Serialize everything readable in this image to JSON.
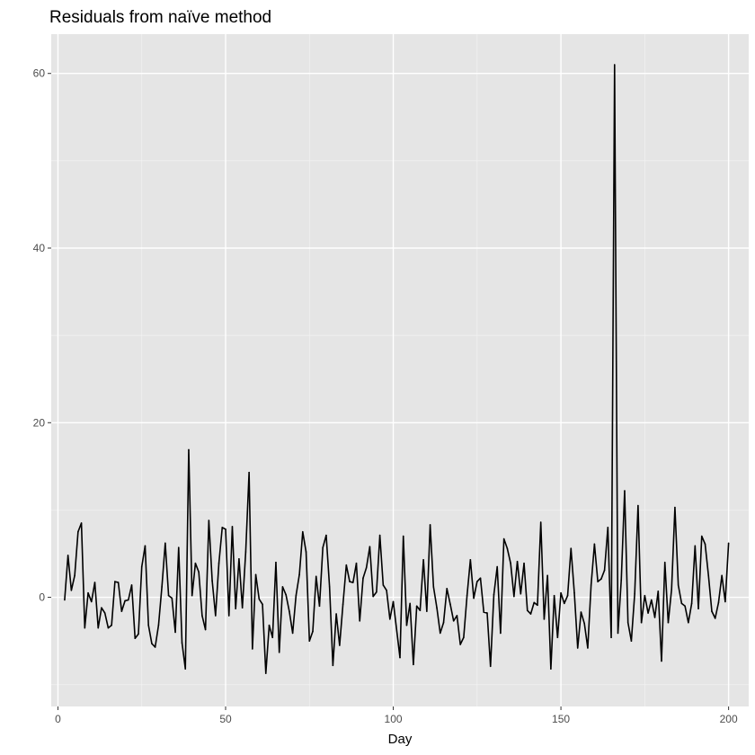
{
  "chart_data": {
    "type": "line",
    "title": "Residuals from naïve method",
    "xlabel": "Day",
    "ylabel": "",
    "xlim": [
      -2,
      206
    ],
    "ylim": [
      -12.5,
      64.5
    ],
    "x_ticks": [
      0,
      50,
      100,
      150,
      200
    ],
    "x_tick_labels": [
      "0",
      "50",
      "100",
      "150",
      "200"
    ],
    "y_ticks": [
      0,
      20,
      40,
      60
    ],
    "y_tick_labels": [
      "0",
      "20",
      "40",
      "60"
    ],
    "grid": true,
    "legend": "none",
    "colors": {
      "line": "#000000",
      "panel": "#e5e5e5"
    },
    "series": [
      {
        "x": [
          2,
          3,
          4,
          5,
          6,
          7,
          8,
          9,
          10,
          11,
          12,
          13,
          14,
          15,
          16,
          17,
          18,
          19,
          20,
          21,
          22,
          23,
          24,
          25,
          26,
          27,
          28,
          29,
          30,
          31,
          32,
          33,
          34,
          35,
          36,
          37,
          38,
          39,
          40,
          41,
          42,
          43,
          44,
          45,
          46,
          47,
          48,
          49,
          50,
          51,
          52,
          53,
          54,
          55,
          56,
          57,
          58,
          59,
          60,
          61,
          62,
          63,
          64,
          65,
          66,
          67,
          68,
          69,
          70,
          71,
          72,
          73,
          74,
          75,
          76,
          77,
          78,
          79,
          80,
          81,
          82,
          83,
          84,
          85,
          86,
          87,
          88,
          89,
          90,
          91,
          92,
          93,
          94,
          95,
          96,
          97,
          98,
          99,
          100,
          101,
          102,
          103,
          104,
          105,
          106,
          107,
          108,
          109,
          110,
          111,
          112,
          113,
          114,
          115,
          116,
          117,
          118,
          119,
          120,
          121,
          122,
          123,
          124,
          125,
          126,
          127,
          128,
          129,
          130,
          131,
          132,
          133,
          134,
          135,
          136,
          137,
          138,
          139,
          140,
          141,
          142,
          143,
          144,
          145,
          146,
          147,
          148,
          149,
          150,
          151,
          152,
          153,
          154,
          155,
          156,
          157,
          158,
          159,
          160,
          161,
          162,
          163,
          164,
          165,
          166,
          167,
          168,
          169,
          170,
          171,
          172,
          173,
          174,
          175,
          176,
          177,
          178,
          179,
          180,
          181,
          182,
          183,
          184,
          185,
          186,
          187,
          188,
          189,
          190,
          191,
          192,
          193,
          194,
          195,
          196,
          197,
          198,
          199,
          200
        ],
        "values": [
          -0.3,
          4.8,
          0.8,
          2.5,
          7.5,
          8.5,
          -3.5,
          0.5,
          -0.5,
          1.7,
          -3.5,
          -1.2,
          -1.8,
          -3.5,
          -3.2,
          1.8,
          1.7,
          -1.6,
          -0.4,
          -0.3,
          1.4,
          -4.7,
          -4.2,
          3.5,
          5.9,
          -3.2,
          -5.3,
          -5.7,
          -3.2,
          1.2,
          6.2,
          0.2,
          -0.1,
          -4.0,
          5.7,
          -5.2,
          -8.2,
          16.9,
          0.2,
          3.9,
          2.9,
          -2.1,
          -3.7,
          8.8,
          1.9,
          -2.1,
          3.9,
          8.0,
          7.8,
          -2.1,
          8.1,
          -1.3,
          4.4,
          -1.2,
          5.2,
          14.3,
          -5.9,
          2.6,
          -0.2,
          -0.8,
          -8.7,
          -3.2,
          -4.6,
          4.0,
          -6.3,
          1.2,
          0.3,
          -1.6,
          -4.1,
          0.2,
          2.6,
          7.5,
          5.2,
          -5.0,
          -3.9,
          2.4,
          -1.0,
          5.7,
          7.1,
          1.2,
          -7.8,
          -1.9,
          -5.5,
          -0.8,
          3.7,
          1.8,
          1.7,
          3.9,
          -2.7,
          2.2,
          3.4,
          5.8,
          0.1,
          0.6,
          7.1,
          1.4,
          0.8,
          -2.5,
          -0.5,
          -3.7,
          -6.9,
          7.0,
          -3.2,
          -0.7,
          -7.7,
          -1.0,
          -1.5,
          4.3,
          -1.6,
          8.3,
          1.2,
          -1.2,
          -4.1,
          -2.9,
          1.0,
          -0.8,
          -2.7,
          -2.1,
          -5.4,
          -4.6,
          0.2,
          4.3,
          -0.1,
          1.8,
          2.2,
          -1.7,
          -1.8,
          -7.9,
          0.3,
          3.5,
          -4.1,
          6.7,
          5.6,
          3.9,
          0.1,
          4.1,
          0.4,
          3.9,
          -1.5,
          -1.9,
          -0.6,
          -0.9,
          8.6,
          -2.5,
          2.5,
          -8.2,
          0.2,
          -4.6,
          0.5,
          -0.7,
          0.2,
          5.6,
          0.5,
          -5.8,
          -1.7,
          -3.0,
          -5.8,
          1.4,
          6.1,
          1.8,
          2.1,
          3.1,
          8.0,
          -4.6,
          61.0,
          -4.1,
          2.0,
          12.2,
          -2.9,
          -5.0,
          0.4,
          10.5,
          -2.9,
          0.2,
          -1.8,
          -0.3,
          -2.3,
          0.7,
          -7.3,
          4.0,
          -2.9,
          0.9,
          10.3,
          1.4,
          -0.7,
          -1.0,
          -2.9,
          -0.7,
          5.9,
          -1.3,
          7.0,
          6.1,
          2.5,
          -1.6,
          -2.4,
          -0.6,
          2.5,
          -0.5,
          6.2
        ]
      }
    ]
  }
}
